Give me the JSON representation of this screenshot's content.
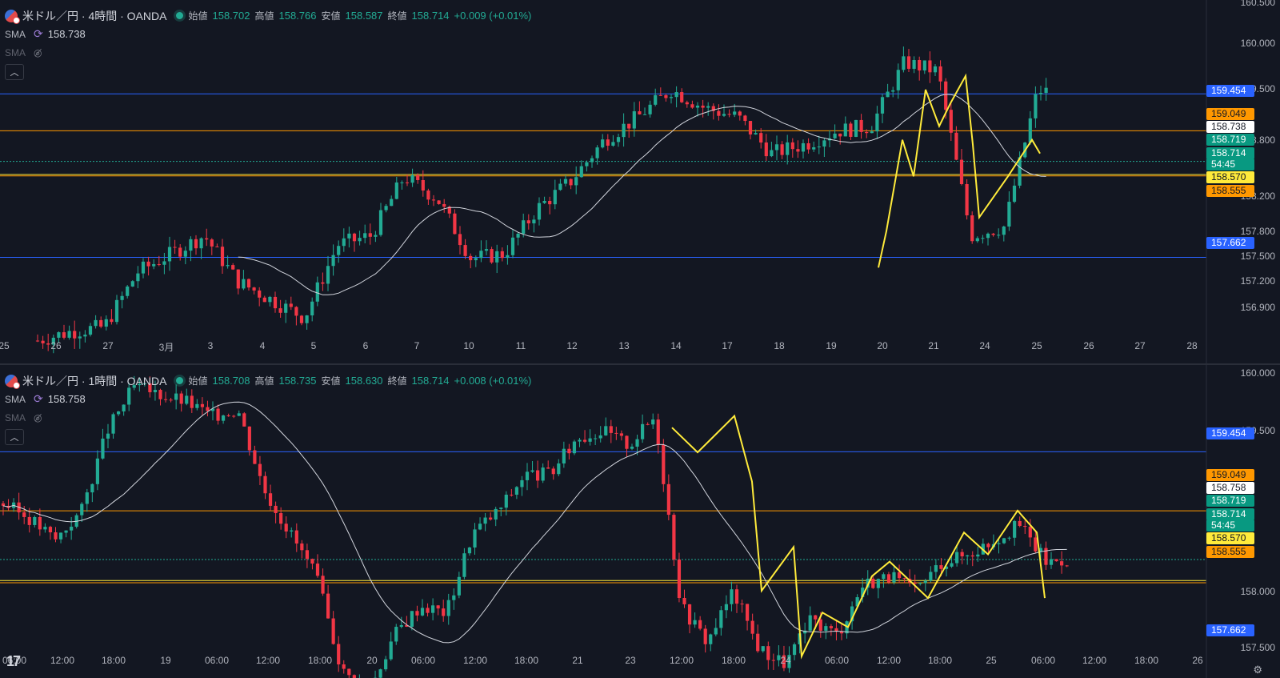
{
  "colors": {
    "bg": "#131722",
    "up": "#22ab94",
    "down": "#f23645",
    "orange": "#ff9800",
    "blue": "#2962ff",
    "sma": "#d1d4dc",
    "yellow": "#ffeb3b",
    "axis": "#b2b5be"
  },
  "top": {
    "symbol": "米ドル／円 · 4時間 · OANDA",
    "open_label": "始値",
    "open": "158.702",
    "high_label": "高値",
    "high": "158.766",
    "low_label": "安値",
    "low": "158.587",
    "close_label": "終値",
    "close": "158.714",
    "change": "+0.009 (+0.01%)",
    "sma1_label": "SMA",
    "sma1_value": "158.738",
    "sma2_label": "SMA",
    "collapse_icon": "chevron-up-icon",
    "price_axis": [
      "160.500",
      "160.000",
      "159.500",
      "158.800",
      "158.200",
      "157.800",
      "157.500",
      "157.200",
      "156.900"
    ],
    "time_axis": [
      "25",
      "26",
      "27",
      "3月",
      "3",
      "4",
      "5",
      "6",
      "7",
      "10",
      "11",
      "12",
      "13",
      "14",
      "17",
      "18",
      "19",
      "20",
      "21",
      "24",
      "25",
      "26",
      "27",
      "28"
    ],
    "tags": [
      {
        "text": "159.454",
        "bg": "#2962ff",
        "fg": "#ffffff"
      },
      {
        "text": "159.049",
        "bg": "#ff9800",
        "fg": "#131722"
      },
      {
        "text": "158.738",
        "bg": "#ffffff",
        "fg": "#131722"
      },
      {
        "text": "158.719",
        "bg": "#089981",
        "fg": "#ffffff"
      },
      {
        "text": "158.714",
        "bg": "#089981",
        "fg": "#ffffff"
      },
      {
        "text": "54:45",
        "bg": "#089981",
        "fg": "#ffffff"
      },
      {
        "text": "158.570",
        "bg": "#ffeb3b",
        "fg": "#131722"
      },
      {
        "text": "158.555",
        "bg": "#ff9800",
        "fg": "#131722"
      },
      {
        "text": "157.662",
        "bg": "#2962ff",
        "fg": "#ffffff"
      }
    ]
  },
  "bottom": {
    "symbol": "米ドル／円 · 1時間 · OANDA",
    "open_label": "始値",
    "open": "158.708",
    "high_label": "高値",
    "high": "158.735",
    "low_label": "安値",
    "low": "158.630",
    "close_label": "終値",
    "close": "158.714",
    "change": "+0.008 (+0.01%)",
    "sma1_label": "SMA",
    "sma1_value": "158.758",
    "sma2_label": "SMA",
    "collapse_icon": "chevron-up-icon",
    "price_axis": [
      "160.000",
      "159.500",
      "158.000",
      "157.500"
    ],
    "time_axis": [
      "06:00",
      "12:00",
      "18:00",
      "19",
      "06:00",
      "12:00",
      "18:00",
      "20",
      "06:00",
      "12:00",
      "18:00",
      "21",
      "23",
      "12:00",
      "18:00",
      "24",
      "06:00",
      "12:00",
      "18:00",
      "25",
      "06:00",
      "12:00",
      "18:00",
      "26"
    ],
    "tags": [
      {
        "text": "159.454",
        "bg": "#2962ff",
        "fg": "#ffffff"
      },
      {
        "text": "159.049",
        "bg": "#ff9800",
        "fg": "#131722"
      },
      {
        "text": "158.758",
        "bg": "#ffffff",
        "fg": "#131722"
      },
      {
        "text": "158.719",
        "bg": "#089981",
        "fg": "#ffffff"
      },
      {
        "text": "158.714",
        "bg": "#089981",
        "fg": "#ffffff"
      },
      {
        "text": "54:45",
        "bg": "#089981",
        "fg": "#ffffff"
      },
      {
        "text": "158.570",
        "bg": "#ffeb3b",
        "fg": "#131722"
      },
      {
        "text": "158.555",
        "bg": "#ff9800",
        "fg": "#131722"
      },
      {
        "text": "157.662",
        "bg": "#2962ff",
        "fg": "#ffffff"
      }
    ]
  },
  "tv_logo": "17",
  "settings_icon": "gear-icon"
}
